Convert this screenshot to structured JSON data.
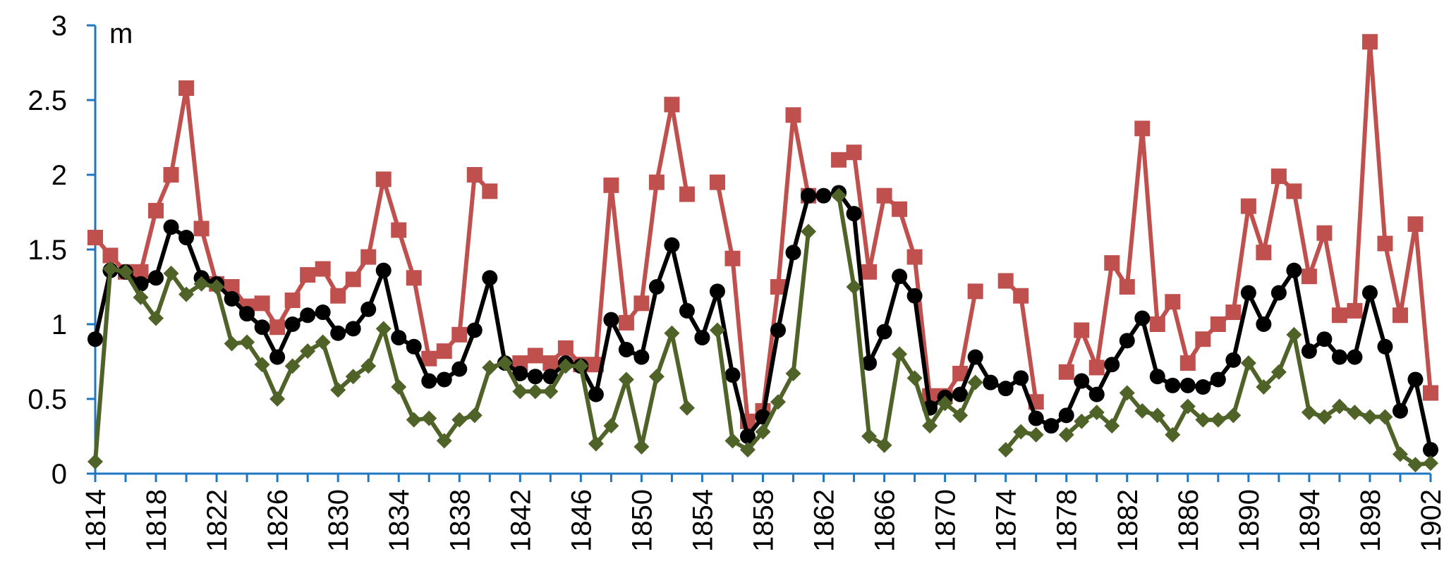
{
  "chart_data": {
    "type": "line",
    "unit_label": "m",
    "xlim": [
      1814,
      1902
    ],
    "ylim": [
      0,
      3
    ],
    "yticks": [
      "0",
      "0.5",
      "1",
      "1.5",
      "2",
      "2.5",
      "3"
    ],
    "xticks": [
      "1814",
      "1818",
      "1822",
      "1826",
      "1830",
      "1834",
      "1838",
      "1842",
      "1846",
      "1850",
      "1854",
      "1858",
      "1862",
      "1866",
      "1870",
      "1874",
      "1878",
      "1882",
      "1886",
      "1890",
      "1894",
      "1898",
      "1902"
    ],
    "grid": false,
    "colors": {
      "axis": "#1f77c4",
      "red": "#c0504d",
      "black": "#000000",
      "green": "#4f6228"
    },
    "series": [
      {
        "color": "#c0504d",
        "marker": "square",
        "points": [
          [
            1814,
            1.58
          ],
          [
            1815,
            1.46
          ],
          [
            1816,
            1.35
          ],
          [
            1817,
            1.35
          ],
          [
            1818,
            1.76
          ],
          [
            1819,
            2.0
          ],
          [
            1820,
            2.58
          ],
          [
            1821,
            1.64
          ],
          [
            1822,
            1.27
          ],
          [
            1823,
            1.25
          ],
          [
            1824,
            1.12
          ],
          [
            1825,
            1.14
          ],
          [
            1826,
            0.98
          ],
          [
            1827,
            1.16
          ],
          [
            1828,
            1.33
          ],
          [
            1829,
            1.37
          ],
          [
            1830,
            1.19
          ],
          [
            1831,
            1.3
          ],
          [
            1832,
            1.45
          ],
          [
            1833,
            1.97
          ],
          [
            1834,
            1.63
          ],
          [
            1835,
            1.31
          ],
          [
            1836,
            0.77
          ],
          [
            1837,
            0.82
          ],
          [
            1838,
            0.93
          ],
          [
            1839,
            2.0
          ],
          [
            1840,
            1.89
          ],
          null,
          [
            1842,
            0.74
          ],
          [
            1843,
            0.79
          ],
          [
            1844,
            0.74
          ],
          [
            1845,
            0.84
          ],
          [
            1846,
            0.73
          ],
          [
            1847,
            0.73
          ],
          [
            1848,
            1.93
          ],
          [
            1849,
            1.01
          ],
          [
            1850,
            1.14
          ],
          [
            1851,
            1.95
          ],
          [
            1852,
            2.47
          ],
          [
            1853,
            1.87
          ],
          null,
          [
            1855,
            1.95
          ],
          [
            1856,
            1.44
          ],
          [
            1857,
            0.35
          ],
          [
            1858,
            0.42
          ],
          [
            1859,
            1.25
          ],
          [
            1860,
            2.4
          ],
          [
            1861,
            1.86
          ],
          null,
          [
            1863,
            2.1
          ],
          [
            1864,
            2.15
          ],
          [
            1865,
            1.35
          ],
          [
            1866,
            1.86
          ],
          [
            1867,
            1.77
          ],
          [
            1868,
            1.45
          ],
          [
            1869,
            0.52
          ],
          [
            1870,
            0.52
          ],
          [
            1871,
            0.67
          ],
          [
            1872,
            1.22
          ],
          null,
          [
            1874,
            1.29
          ],
          [
            1875,
            1.19
          ],
          [
            1876,
            0.48
          ],
          null,
          [
            1878,
            0.68
          ],
          [
            1879,
            0.96
          ],
          [
            1880,
            0.71
          ],
          [
            1881,
            1.41
          ],
          [
            1882,
            1.25
          ],
          [
            1883,
            2.31
          ],
          [
            1884,
            1.0
          ],
          [
            1885,
            1.15
          ],
          [
            1886,
            0.74
          ],
          [
            1887,
            0.9
          ],
          [
            1888,
            1.0
          ],
          [
            1889,
            1.08
          ],
          [
            1890,
            1.79
          ],
          [
            1891,
            1.48
          ],
          [
            1892,
            1.99
          ],
          [
            1893,
            1.89
          ],
          [
            1894,
            1.32
          ],
          [
            1895,
            1.61
          ],
          [
            1896,
            1.06
          ],
          [
            1897,
            1.09
          ],
          [
            1898,
            2.89
          ],
          [
            1899,
            1.54
          ],
          [
            1900,
            1.06
          ],
          [
            1901,
            1.67
          ],
          [
            1902,
            0.54
          ]
        ]
      },
      {
        "color": "#000000",
        "marker": "circle",
        "points": [
          [
            1814,
            0.9
          ],
          [
            1815,
            1.36
          ],
          [
            1816,
            1.35
          ],
          [
            1817,
            1.27
          ],
          [
            1818,
            1.31
          ],
          [
            1819,
            1.65
          ],
          [
            1820,
            1.58
          ],
          [
            1821,
            1.31
          ],
          [
            1822,
            1.27
          ],
          [
            1823,
            1.17
          ],
          [
            1824,
            1.07
          ],
          [
            1825,
            0.98
          ],
          [
            1826,
            0.78
          ],
          [
            1827,
            1.0
          ],
          [
            1828,
            1.06
          ],
          [
            1829,
            1.08
          ],
          [
            1830,
            0.94
          ],
          [
            1831,
            0.97
          ],
          [
            1832,
            1.1
          ],
          [
            1833,
            1.36
          ],
          [
            1834,
            0.91
          ],
          [
            1835,
            0.85
          ],
          [
            1836,
            0.62
          ],
          [
            1837,
            0.63
          ],
          [
            1838,
            0.7
          ],
          [
            1839,
            0.96
          ],
          [
            1840,
            1.31
          ],
          [
            1841,
            0.74
          ],
          [
            1842,
            0.67
          ],
          [
            1843,
            0.65
          ],
          [
            1844,
            0.65
          ],
          [
            1845,
            0.74
          ],
          [
            1846,
            0.72
          ],
          [
            1847,
            0.53
          ],
          [
            1848,
            1.03
          ],
          [
            1849,
            0.83
          ],
          [
            1850,
            0.78
          ],
          [
            1851,
            1.25
          ],
          [
            1852,
            1.53
          ],
          [
            1853,
            1.09
          ],
          [
            1854,
            0.91
          ],
          [
            1855,
            1.22
          ],
          [
            1856,
            0.66
          ],
          [
            1857,
            0.25
          ],
          [
            1858,
            0.38
          ],
          [
            1859,
            0.96
          ],
          [
            1860,
            1.48
          ],
          [
            1861,
            1.86
          ],
          [
            1862,
            1.86
          ],
          [
            1863,
            1.88
          ],
          [
            1864,
            1.74
          ],
          [
            1865,
            0.74
          ],
          [
            1866,
            0.95
          ],
          [
            1867,
            1.32
          ],
          [
            1868,
            1.19
          ],
          [
            1869,
            0.44
          ],
          [
            1870,
            0.51
          ],
          [
            1871,
            0.53
          ],
          [
            1872,
            0.78
          ],
          [
            1873,
            0.61
          ],
          [
            1874,
            0.57
          ],
          [
            1875,
            0.64
          ],
          [
            1876,
            0.37
          ],
          [
            1877,
            0.32
          ],
          [
            1878,
            0.39
          ],
          [
            1879,
            0.62
          ],
          [
            1880,
            0.53
          ],
          [
            1881,
            0.73
          ],
          [
            1882,
            0.89
          ],
          [
            1883,
            1.04
          ],
          [
            1884,
            0.65
          ],
          [
            1885,
            0.59
          ],
          [
            1886,
            0.59
          ],
          [
            1887,
            0.58
          ],
          [
            1888,
            0.63
          ],
          [
            1889,
            0.76
          ],
          [
            1890,
            1.21
          ],
          [
            1891,
            1.0
          ],
          [
            1892,
            1.21
          ],
          [
            1893,
            1.36
          ],
          [
            1894,
            0.82
          ],
          [
            1895,
            0.9
          ],
          [
            1896,
            0.78
          ],
          [
            1897,
            0.78
          ],
          [
            1898,
            1.21
          ],
          [
            1899,
            0.85
          ],
          [
            1900,
            0.42
          ],
          [
            1901,
            0.63
          ],
          [
            1902,
            0.16
          ]
        ]
      },
      {
        "color": "#4f6228",
        "marker": "diamond",
        "points": [
          [
            1814,
            0.08
          ],
          [
            1815,
            1.37
          ],
          [
            1816,
            1.35
          ],
          [
            1817,
            1.18
          ],
          [
            1818,
            1.04
          ],
          [
            1819,
            1.34
          ],
          [
            1820,
            1.2
          ],
          [
            1821,
            1.27
          ],
          [
            1822,
            1.25
          ],
          [
            1823,
            0.87
          ],
          [
            1824,
            0.88
          ],
          [
            1825,
            0.73
          ],
          [
            1826,
            0.5
          ],
          [
            1827,
            0.72
          ],
          [
            1828,
            0.82
          ],
          [
            1829,
            0.88
          ],
          [
            1830,
            0.56
          ],
          [
            1831,
            0.65
          ],
          [
            1832,
            0.72
          ],
          [
            1833,
            0.97
          ],
          [
            1834,
            0.58
          ],
          [
            1835,
            0.36
          ],
          [
            1836,
            0.37
          ],
          [
            1837,
            0.22
          ],
          [
            1838,
            0.36
          ],
          [
            1839,
            0.39
          ],
          [
            1840,
            0.71
          ],
          [
            1841,
            0.74
          ],
          [
            1842,
            0.55
          ],
          [
            1843,
            0.55
          ],
          [
            1844,
            0.55
          ],
          [
            1845,
            0.72
          ],
          [
            1846,
            0.72
          ],
          [
            1847,
            0.2
          ],
          [
            1848,
            0.32
          ],
          [
            1849,
            0.63
          ],
          [
            1850,
            0.18
          ],
          [
            1851,
            0.65
          ],
          [
            1852,
            0.94
          ],
          [
            1853,
            0.44
          ],
          null,
          [
            1855,
            0.96
          ],
          [
            1856,
            0.22
          ],
          [
            1857,
            0.16
          ],
          [
            1858,
            0.28
          ],
          [
            1859,
            0.48
          ],
          [
            1860,
            0.67
          ],
          [
            1861,
            1.62
          ],
          null,
          [
            1863,
            1.86
          ],
          [
            1864,
            1.25
          ],
          [
            1865,
            0.25
          ],
          [
            1866,
            0.19
          ],
          [
            1867,
            0.8
          ],
          [
            1868,
            0.64
          ],
          [
            1869,
            0.32
          ],
          [
            1870,
            0.47
          ],
          [
            1871,
            0.39
          ],
          [
            1872,
            0.61
          ],
          null,
          [
            1874,
            0.16
          ],
          [
            1875,
            0.28
          ],
          [
            1876,
            0.26
          ],
          null,
          [
            1878,
            0.26
          ],
          [
            1879,
            0.35
          ],
          [
            1880,
            0.41
          ],
          [
            1881,
            0.32
          ],
          [
            1882,
            0.54
          ],
          [
            1883,
            0.42
          ],
          [
            1884,
            0.39
          ],
          [
            1885,
            0.26
          ],
          [
            1886,
            0.45
          ],
          [
            1887,
            0.36
          ],
          [
            1888,
            0.36
          ],
          [
            1889,
            0.39
          ],
          [
            1890,
            0.74
          ],
          [
            1891,
            0.58
          ],
          [
            1892,
            0.68
          ],
          [
            1893,
            0.93
          ],
          [
            1894,
            0.41
          ],
          [
            1895,
            0.38
          ],
          [
            1896,
            0.45
          ],
          [
            1897,
            0.41
          ],
          [
            1898,
            0.38
          ],
          [
            1899,
            0.38
          ],
          [
            1900,
            0.13
          ],
          [
            1901,
            0.06
          ],
          [
            1902,
            0.07
          ]
        ]
      }
    ]
  }
}
